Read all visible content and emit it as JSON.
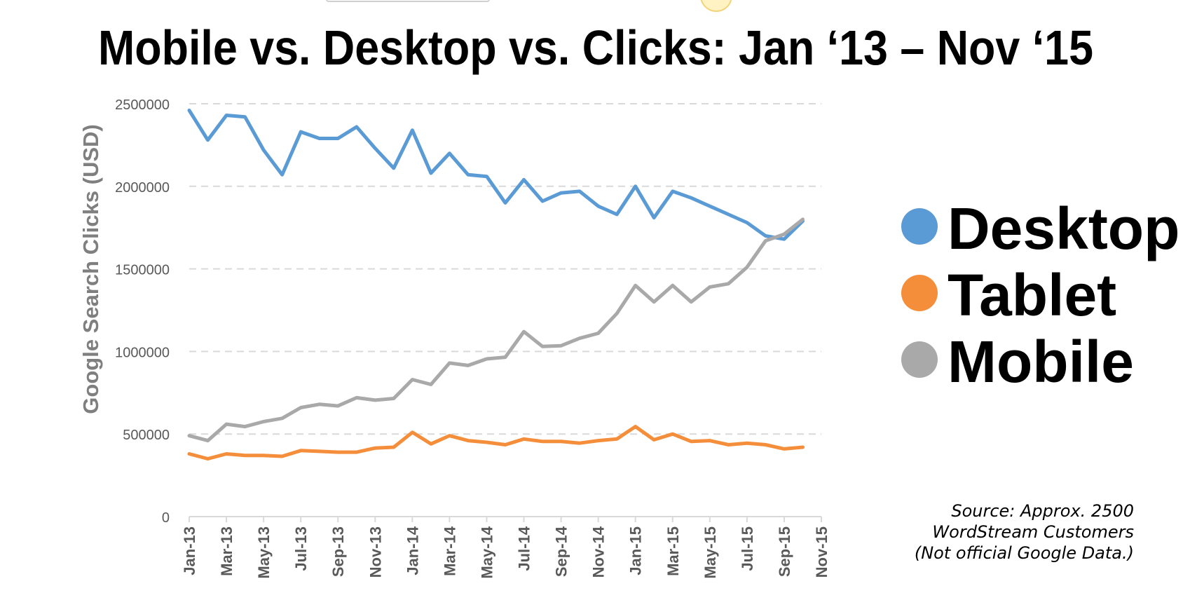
{
  "chart_data": {
    "type": "line",
    "title": "Mobile vs. Desktop vs. Clicks: Jan ‘13 – Nov ‘15",
    "ylabel": "Google Search Clicks (USD)",
    "xlabel": "",
    "ylim": [
      0,
      2500000
    ],
    "y_ticks": [
      0,
      500000,
      1000000,
      1500000,
      2000000,
      2500000
    ],
    "y_tick_labels": [
      "0",
      "500000",
      "1000000",
      "1500000",
      "2000000",
      "2500000"
    ],
    "grid": true,
    "legend_position": "right",
    "categories": [
      "Jan-13",
      "Feb-13",
      "Mar-13",
      "Apr-13",
      "May-13",
      "Jun-13",
      "Jul-13",
      "Aug-13",
      "Sep-13",
      "Oct-13",
      "Nov-13",
      "Dec-13",
      "Jan-14",
      "Feb-14",
      "Mar-14",
      "Apr-14",
      "May-14",
      "Jun-14",
      "Jul-14",
      "Aug-14",
      "Sep-14",
      "Oct-14",
      "Nov-14",
      "Dec-14",
      "Jan-15",
      "Feb-15",
      "Mar-15",
      "Apr-15",
      "May-15",
      "Jun-15",
      "Jul-15",
      "Aug-15",
      "Sep-15",
      "Oct-15",
      "Nov-15"
    ],
    "x_tick_labels": [
      "Jan-13",
      "Mar-13",
      "May-13",
      "Jul-13",
      "Sep-13",
      "Nov-13",
      "Jan-14",
      "Mar-14",
      "May-14",
      "Jul-14",
      "Sep-14",
      "Nov-14",
      "Jan-15",
      "Mar-15",
      "May-15",
      "Jul-15",
      "Sep-15",
      "Nov-15"
    ],
    "series": [
      {
        "name": "Desktop",
        "color": "#5b9bd5",
        "values": [
          2460000,
          2280000,
          2430000,
          2420000,
          2220000,
          2070000,
          2330000,
          2290000,
          2290000,
          2360000,
          2230000,
          2110000,
          2340000,
          2080000,
          2200000,
          2070000,
          2060000,
          1900000,
          2040000,
          1910000,
          1960000,
          1970000,
          1880000,
          1830000,
          2000000,
          1810000,
          1970000,
          1930000,
          1880000,
          1830000,
          1780000,
          1700000,
          1680000,
          1790000,
          null
        ]
      },
      {
        "name": "Tablet",
        "color": "#f58e3b",
        "values": [
          380000,
          350000,
          380000,
          370000,
          370000,
          365000,
          400000,
          395000,
          390000,
          390000,
          415000,
          420000,
          510000,
          440000,
          490000,
          460000,
          450000,
          435000,
          470000,
          455000,
          455000,
          445000,
          460000,
          470000,
          545000,
          465000,
          500000,
          455000,
          460000,
          435000,
          445000,
          435000,
          410000,
          420000,
          null
        ]
      },
      {
        "name": "Mobile",
        "color": "#a9a9a9",
        "values": [
          490000,
          460000,
          560000,
          545000,
          575000,
          595000,
          660000,
          680000,
          670000,
          720000,
          705000,
          715000,
          830000,
          800000,
          930000,
          915000,
          955000,
          965000,
          1120000,
          1030000,
          1035000,
          1080000,
          1110000,
          1230000,
          1400000,
          1300000,
          1400000,
          1300000,
          1390000,
          1410000,
          1510000,
          1670000,
          1710000,
          1800000,
          null
        ]
      }
    ],
    "legend": [
      {
        "name": "Desktop",
        "color": "#5b9bd5"
      },
      {
        "name": "Tablet",
        "color": "#f58e3b"
      },
      {
        "name": "Mobile",
        "color": "#a9a9a9"
      }
    ],
    "source_note": [
      "Source: Approx. 2500",
      "WordStream Customers",
      "(Not official Google Data.)"
    ]
  }
}
